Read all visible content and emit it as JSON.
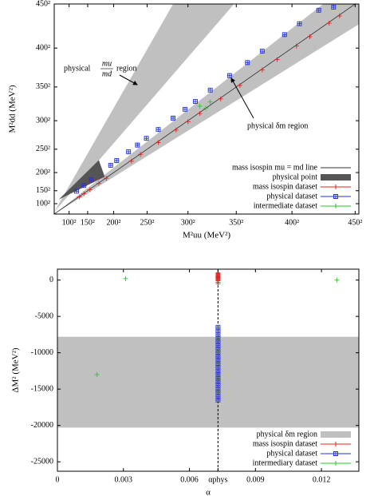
{
  "chart_data": [
    {
      "type": "scatter",
      "xlabel": "M²uu (MeV²)",
      "ylabel": "M²dd (MeV²)",
      "xlim": [
        0,
        205000
      ],
      "ylim": [
        0,
        202500
      ],
      "xticks": [
        {
          "value": 10000,
          "label": "100²"
        },
        {
          "value": 22500,
          "label": "150²"
        },
        {
          "value": 40000,
          "label": "200²"
        },
        {
          "value": 62500,
          "label": "250²"
        },
        {
          "value": 90000,
          "label": "300²"
        },
        {
          "value": 122500,
          "label": "350²"
        },
        {
          "value": 160000,
          "label": "400²"
        },
        {
          "value": 202500,
          "label": "450²"
        }
      ],
      "yticks": [
        {
          "value": 10000,
          "label": "100²"
        },
        {
          "value": 22500,
          "label": "150²"
        },
        {
          "value": 40000,
          "label": "200²"
        },
        {
          "value": 62500,
          "label": "250²"
        },
        {
          "value": 90000,
          "label": "300²"
        },
        {
          "value": 122500,
          "label": "350²"
        },
        {
          "value": 160000,
          "label": "400²"
        },
        {
          "value": 202500,
          "label": "450²"
        }
      ],
      "regions": [
        {
          "color": "#c0c0c0",
          "x": [
            0,
            121000,
            80000
          ],
          "y": [
            2000,
            202500,
            202500
          ]
        },
        {
          "color": "#c0c0c0",
          "x": [
            0,
            181000,
            205000,
            205000
          ],
          "y": [
            0,
            202500,
            202500,
            183000
          ]
        },
        {
          "name": "physical point",
          "color": "#555555",
          "x": [
            3000,
            30000,
            34000
          ],
          "y": [
            14000,
            52000,
            36000
          ]
        }
      ],
      "line": {
        "name": "mass isospin mu = md line",
        "color": "#333333",
        "x": [
          0,
          202500
        ],
        "y": [
          0,
          202500
        ]
      },
      "annotations": [
        {
          "text": "physical",
          "numerator": "mu",
          "denominator": "md",
          "text2": "region"
        },
        {
          "text": "physical δm region"
        }
      ],
      "series": [
        {
          "name": "mass isospin dataset",
          "color": "#e8201c",
          "marker": "cross",
          "x": [
            17000,
            20000,
            24000,
            30000,
            35000,
            52000,
            58000,
            70000,
            82000,
            90000,
            98000,
            112000,
            125000,
            140000,
            150000,
            163000,
            172000,
            185000,
            192000
          ],
          "y": [
            16500,
            19500,
            23500,
            29500,
            34500,
            51000,
            57500,
            69000,
            81000,
            89000,
            97000,
            111000,
            124000,
            139000,
            149000,
            162000,
            171000,
            184000,
            191000
          ]
        },
        {
          "name": "physical dataset",
          "color": "#2233dd",
          "marker": "box",
          "x": [
            15000,
            20000,
            25000,
            38000,
            42000,
            50000,
            56000,
            62000,
            70000,
            80000,
            88000,
            95000,
            105000,
            118000,
            130000,
            140000,
            155000,
            165000,
            178000,
            188000
          ],
          "y": [
            22000,
            27500,
            33000,
            47000,
            51500,
            60000,
            66500,
            73000,
            81500,
            92500,
            101000,
            108500,
            119500,
            133500,
            146000,
            157000,
            173000,
            183500,
            196500,
            199500
          ]
        },
        {
          "name": "intermediate dataset",
          "color": "#22cc22",
          "marker": "cross",
          "x": [
            98000,
            102000,
            105000
          ],
          "y": [
            104000,
            102000,
            108000
          ]
        }
      ]
    },
    {
      "type": "scatter",
      "xlabel": "α",
      "ylabel": "ΔM² (MeV²)",
      "xlim": [
        0,
        0.0137
      ],
      "ylim": [
        -26300,
        1500
      ],
      "xticks": [
        0,
        0.003,
        0.006,
        {
          "value": 0.00729735,
          "label": "αphys"
        },
        0.009,
        0.012
      ],
      "yticks": [
        0,
        -5000,
        -10000,
        -15000,
        -20000,
        -25000
      ],
      "band": {
        "name": "physical δm region",
        "color": "#c0c0c0",
        "y": [
          -20300,
          -7800
        ]
      },
      "series": [
        {
          "name": "mass isospin dataset",
          "color": "#e8201c",
          "marker": "cross",
          "x": [
            0.0073,
            0.0073,
            0.0073,
            0.0073,
            0.0073,
            0.0073,
            0.0073,
            0.0073,
            0.0073,
            0.0073,
            0.0073,
            0.0073,
            0.0073,
            0.0073
          ],
          "y": [
            -500,
            -300,
            -100,
            0,
            100,
            200,
            300,
            400,
            500,
            600,
            700,
            800,
            900,
            1000
          ]
        },
        {
          "name": "physical dataset",
          "color": "#2233dd",
          "marker": "box",
          "x": [
            0.0073,
            0.0073,
            0.0073,
            0.0073,
            0.0073,
            0.0073,
            0.0073,
            0.0073,
            0.0073,
            0.0073,
            0.0073,
            0.0073,
            0.0073,
            0.0073,
            0.0073,
            0.0073,
            0.0073,
            0.0073,
            0.0073,
            0.0073,
            0.0073
          ],
          "y": [
            -6500,
            -7000,
            -7500,
            -8000,
            -8500,
            -9000,
            -9500,
            -10000,
            -10500,
            -11000,
            -11500,
            -12000,
            -12500,
            -13000,
            -13500,
            -14000,
            -14500,
            -15000,
            -15500,
            -16000,
            -16500
          ]
        },
        {
          "name": "intermediary dataset",
          "color": "#22cc22",
          "marker": "cross",
          "x": [
            0.0031,
            0.0127,
            0.0018
          ],
          "y": [
            200,
            0,
            -13000
          ]
        }
      ]
    }
  ]
}
